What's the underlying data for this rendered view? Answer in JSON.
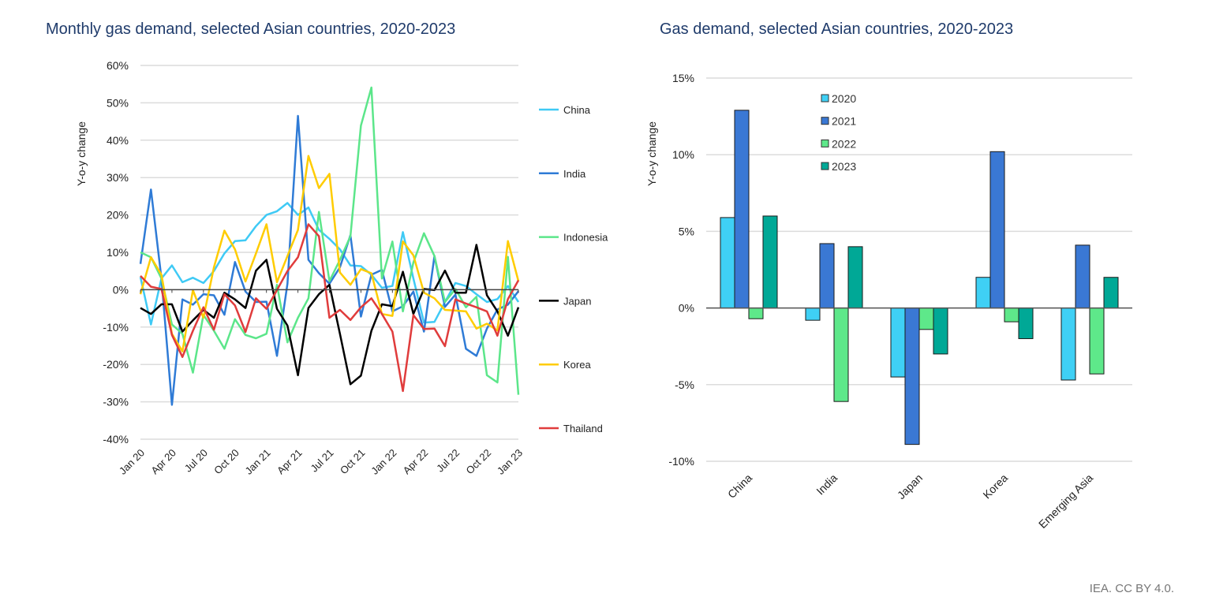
{
  "footer": "IEA. CC BY 4.0.",
  "chart_data": [
    {
      "type": "line",
      "title": "Monthly gas demand, selected Asian countries, 2020-2023",
      "ylabel": "Y-o-y change",
      "xlabel": "",
      "ylim": [
        -40,
        60
      ],
      "yticks": [
        "60%",
        "50%",
        "40%",
        "30%",
        "20%",
        "10%",
        "0%",
        "-10%",
        "-20%",
        "-30%",
        "-40%"
      ],
      "ytick_values": [
        60,
        50,
        40,
        30,
        20,
        10,
        0,
        -10,
        -20,
        -30,
        -40
      ],
      "x": [
        "Jan 20",
        "Feb 20",
        "Mar 20",
        "Apr 20",
        "May 20",
        "Jun 20",
        "Jul 20",
        "Aug 20",
        "Sep 20",
        "Oct 20",
        "Nov 20",
        "Dec 20",
        "Jan 21",
        "Feb 21",
        "Mar 21",
        "Apr 21",
        "May 21",
        "Jun 21",
        "Jul 21",
        "Aug 21",
        "Sep 21",
        "Oct 21",
        "Nov 21",
        "Dec 21",
        "Jan 22",
        "Feb 22",
        "Mar 22",
        "Apr 22",
        "May 22",
        "Jun 22",
        "Jul 22",
        "Aug 22",
        "Sep 22",
        "Oct 22",
        "Nov 22",
        "Dec 22",
        "Jan 23"
      ],
      "xtick_labels": [
        "Jan 20",
        "Apr 20",
        "Jul 20",
        "Oct 20",
        "Jan 21",
        "Apr 21",
        "Jul 21",
        "Oct 21",
        "Jan 22",
        "Apr 22",
        "Jul 22",
        "Oct 22",
        "Jan 23"
      ],
      "grid": true,
      "legend_placement": "right",
      "series": [
        {
          "name": "China",
          "color": "#3fcaf5",
          "values": [
            3.4,
            -9.3,
            3,
            6.5,
            2,
            3.2,
            1.8,
            5,
            9.7,
            13,
            13.2,
            17,
            20,
            21,
            23.2,
            20,
            22,
            16,
            13.6,
            10.8,
            6.5,
            6.3,
            4,
            0.5,
            1,
            15.4,
            3,
            -8.8,
            -8.6,
            -3.3,
            1.8,
            1,
            -1.2,
            -3.3,
            -2.5,
            1,
            -3.3
          ]
        },
        {
          "name": "India",
          "color": "#2f7bd6",
          "values": [
            6.9,
            26.8,
            3,
            -30.8,
            -2.6,
            -4,
            -1.2,
            -1.5,
            -6.7,
            7.4,
            -0.5,
            -3.3,
            -3.2,
            -17.7,
            1.6,
            46.5,
            8,
            4.4,
            1.6,
            6,
            14.6,
            -7.2,
            4,
            5.3,
            -5.8,
            -4.4,
            -0.5,
            -11.2,
            9,
            -4.6,
            -1.3,
            -15.8,
            -17.7,
            -10.4,
            -5.3,
            -4,
            -0.4
          ]
        },
        {
          "name": "Indonesia",
          "color": "#5ce68a",
          "values": [
            10,
            8.7,
            3,
            -9.3,
            -11.8,
            -22.2,
            -6.7,
            -11,
            -15.8,
            -7.9,
            -12.1,
            -13,
            -11.8,
            1.3,
            -14.1,
            -7.5,
            -2.3,
            20.8,
            2.3,
            8,
            14.3,
            43.9,
            54.1,
            3,
            12.9,
            -5.8,
            7.3,
            15.1,
            9,
            -3.3,
            0.2,
            -4.7,
            -1.9,
            -22.9,
            -24.8,
            8.8,
            -28.1
          ]
        },
        {
          "name": "Japan",
          "color": "#000000",
          "values": [
            -4.9,
            -6.5,
            -3.9,
            -3.9,
            -11.2,
            -8.2,
            -5.4,
            -7.5,
            -0.8,
            -2.6,
            -4.9,
            5.1,
            8,
            -5.1,
            -9.6,
            -22.9,
            -4.9,
            -1.2,
            1.3,
            -11.8,
            -25.3,
            -23,
            -11,
            -3.9,
            -4.4,
            4.8,
            -6.5,
            0.2,
            -0.1,
            5.1,
            -0.8,
            -0.8,
            12,
            -1.5,
            -5.8,
            -12.3,
            -4.7
          ]
        },
        {
          "name": "Korea",
          "color": "#ffcc00",
          "values": [
            -1.2,
            8.7,
            4,
            -11.8,
            -16.5,
            -0.1,
            -7.5,
            6,
            15.8,
            10.8,
            2.2,
            9.7,
            17.5,
            2,
            9,
            16,
            35.8,
            27.2,
            31,
            4.6,
            1.3,
            5.5,
            4.4,
            -6.5,
            -7,
            12.9,
            9.2,
            -0.8,
            -2.3,
            -5.4,
            -5.6,
            -5.8,
            -10.4,
            -9.1,
            -10.9,
            13,
            2.3
          ]
        },
        {
          "name": "Thailand",
          "color": "#e03c3c",
          "values": [
            3.7,
            0.8,
            0.2,
            -12.1,
            -18,
            -11,
            -4.7,
            -10.7,
            -1.2,
            -4.2,
            -11.3,
            -2.3,
            -5.1,
            -0.1,
            5,
            8.7,
            17.5,
            14.3,
            -7.5,
            -5.4,
            -8.1,
            -4.7,
            -2.3,
            -6.5,
            -11.2,
            -27.1,
            -6.8,
            -10.5,
            -10.4,
            -15.1,
            -2.6,
            -3.7,
            -4.7,
            -5.8,
            -12.3,
            -2.5,
            2.5
          ]
        }
      ]
    },
    {
      "type": "bar",
      "title": "Gas demand, selected Asian countries, 2020-2023",
      "ylabel": "Y-o-y change",
      "xlabel": "",
      "ylim": [
        -10,
        15
      ],
      "yticks": [
        "15%",
        "10%",
        "5%",
        "0%",
        "-5%",
        "-10%"
      ],
      "ytick_values": [
        15,
        10,
        5,
        0,
        -5,
        -10
      ],
      "categories": [
        "China",
        "India",
        "Japan",
        "Korea",
        "Emerging Asia"
      ],
      "grid": true,
      "legend_placement": "top-center",
      "series": [
        {
          "name": "2020",
          "color": "#3fd0f5",
          "values": [
            5.9,
            -0.8,
            -4.5,
            2.0,
            -4.7
          ]
        },
        {
          "name": "2021",
          "color": "#3a78d4",
          "values": [
            12.9,
            4.2,
            -8.9,
            10.2,
            4.1
          ]
        },
        {
          "name": "2022",
          "color": "#5ee88a",
          "values": [
            -0.7,
            -6.1,
            -1.4,
            -0.9,
            -4.3
          ]
        },
        {
          "name": "2023",
          "color": "#00a896",
          "values": [
            6.0,
            4.0,
            -3.0,
            -2.0,
            2.0
          ]
        }
      ]
    }
  ]
}
